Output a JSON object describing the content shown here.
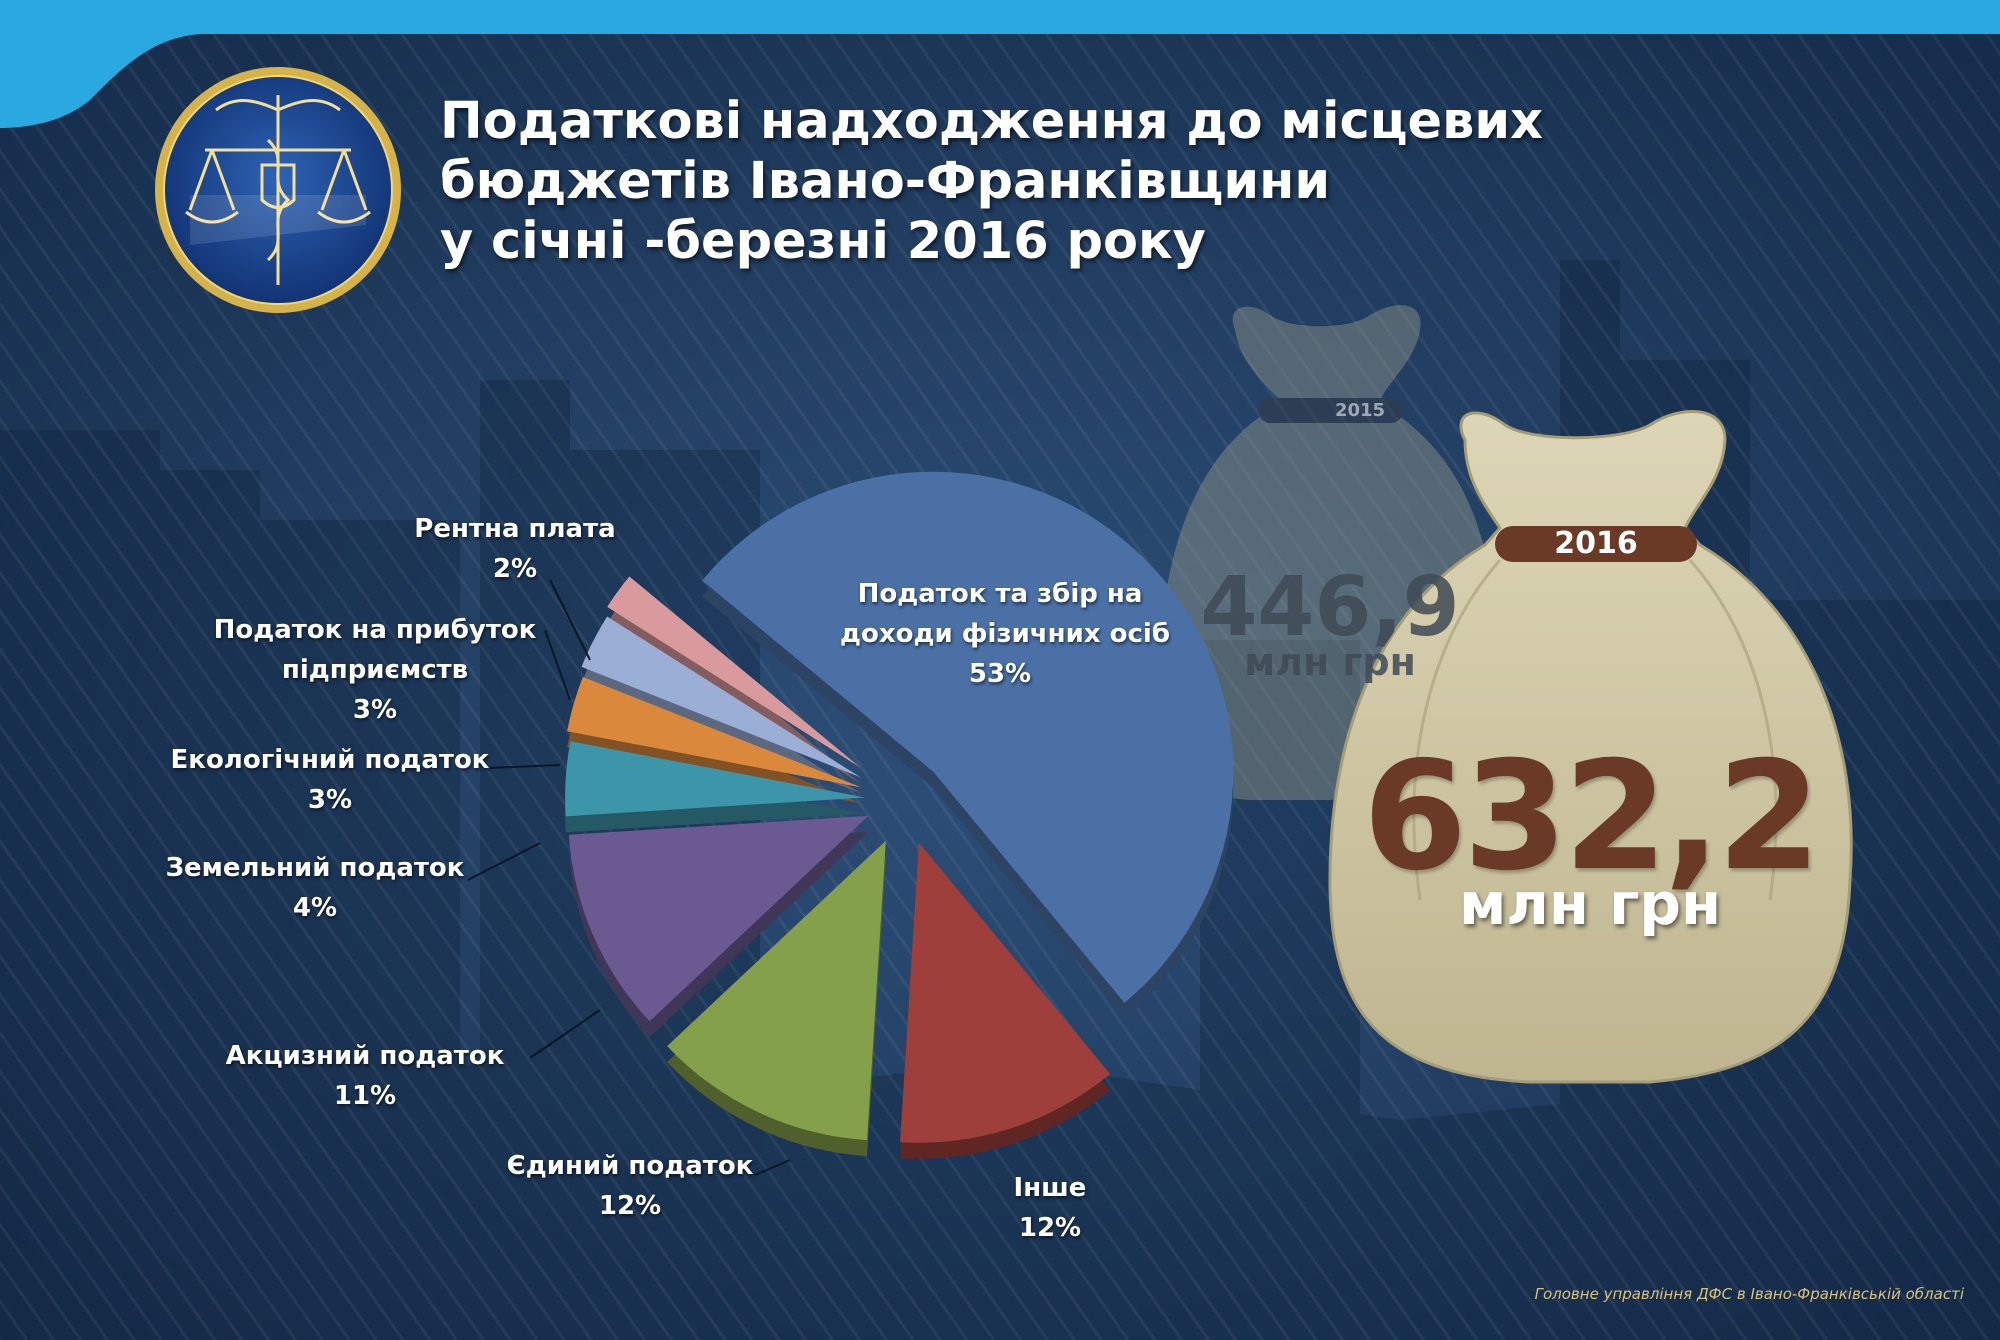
{
  "title": {
    "line1": "Податкові надходження до місцевих",
    "line2": "бюджетів Івано-Франківщини",
    "line3": "у січні -березні 2016 року"
  },
  "colors": {
    "background": "#1f3a5e",
    "top_bar": "#29a9df",
    "bag_2016": "#cdc5a3",
    "bag_band": "#6a3a26",
    "bag_number": "#6a3a26"
  },
  "bags": {
    "year_2015": {
      "label": "2015",
      "value": "446,9",
      "unit": "млн грн"
    },
    "year_2016": {
      "label": "2016",
      "value": "632,2",
      "unit": "млн грн"
    }
  },
  "chart_data": {
    "type": "pie",
    "style": "3d-exploded",
    "slices": [
      {
        "label_lines": [
          "Податок та збір на",
          "доходи фізичних осіб"
        ],
        "percent_label": "53%",
        "value": 53,
        "color": "#4a70a6"
      },
      {
        "label_lines": [
          "Інше"
        ],
        "percent_label": "12%",
        "value": 12,
        "color": "#9e3f3c"
      },
      {
        "label_lines": [
          "Єдиний податок"
        ],
        "percent_label": "12%",
        "value": 12,
        "color": "#85a04a"
      },
      {
        "label_lines": [
          "Акцизний податок"
        ],
        "percent_label": "11%",
        "value": 11,
        "color": "#6b5a92"
      },
      {
        "label_lines": [
          "Земельний податок"
        ],
        "percent_label": "4%",
        "value": 4,
        "color": "#3c95a8"
      },
      {
        "label_lines": [
          "Екологічний податок"
        ],
        "percent_label": "3%",
        "value": 3,
        "color": "#d9883c"
      },
      {
        "label_lines": [
          "Податок на прибуток",
          "підприємств"
        ],
        "percent_label": "3%",
        "value": 3,
        "color": "#9aaed6"
      },
      {
        "label_lines": [
          "Рентна плата"
        ],
        "percent_label": "2%",
        "value": 2,
        "color": "#d99a9d"
      }
    ]
  },
  "footer": "Головне управління ДФС в Івано-Франківській області"
}
